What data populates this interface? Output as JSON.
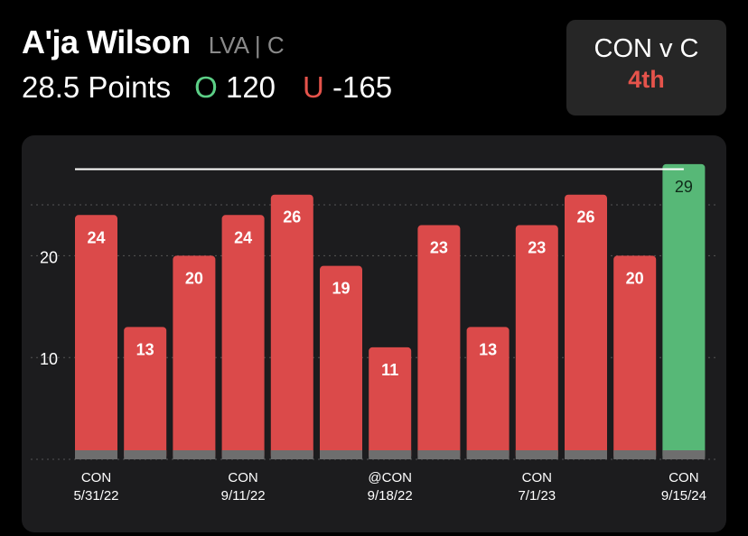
{
  "header": {
    "player_name": "A'ja Wilson",
    "team_position": "LVA | C",
    "prop_label": "28.5 Points",
    "over_label": "O",
    "over_odds": "120",
    "under_label": "U",
    "under_odds": "-165"
  },
  "game": {
    "matchup": "CON v C",
    "period": "4th"
  },
  "colors": {
    "under": "#db4a4a",
    "over": "#57b877",
    "baseline_band": "#6e6e6e",
    "line": "#ffffff",
    "grid": "#555555",
    "panel": "#1c1c1e"
  },
  "chart_data": {
    "type": "bar",
    "title": "",
    "xlabel": "",
    "ylabel": "",
    "line_value": 28.5,
    "ylim": [
      0,
      29
    ],
    "yticks": [
      10,
      20
    ],
    "grid": "dotted-horizontal",
    "values": [
      24,
      13,
      20,
      24,
      26,
      19,
      11,
      23,
      13,
      23,
      26,
      20,
      29
    ],
    "value_labels": [
      "24",
      "13",
      "20",
      "24",
      "26",
      "19",
      "11",
      "23",
      "13",
      "23",
      "26",
      "20",
      "29"
    ],
    "result": [
      "under",
      "under",
      "under",
      "under",
      "under",
      "under",
      "under",
      "under",
      "under",
      "under",
      "under",
      "under",
      "over"
    ],
    "x_labels": [
      {
        "bar": 0,
        "opponent": "CON",
        "date": "5/31/22"
      },
      {
        "bar": 3,
        "opponent": "CON",
        "date": "9/11/22"
      },
      {
        "bar": 6,
        "opponent": "@CON",
        "date": "9/18/22"
      },
      {
        "bar": 9,
        "opponent": "CON",
        "date": "7/1/23"
      },
      {
        "bar": 12,
        "opponent": "CON",
        "date": "9/15/24"
      }
    ]
  }
}
